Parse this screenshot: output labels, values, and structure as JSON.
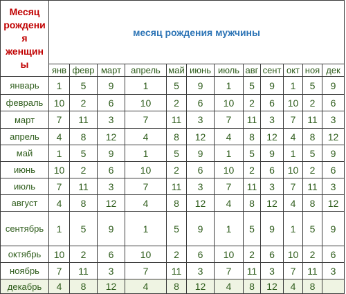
{
  "corner_label": [
    "Месяц",
    "рождени",
    "я",
    "женщин",
    "ы"
  ],
  "title": "месяц рождения мужчины",
  "male_months": [
    "янв",
    "февр",
    "март",
    "апрель",
    "май",
    "июнь",
    "июль",
    "авг",
    "сент",
    "окт",
    "ноя",
    "дек"
  ],
  "rows": [
    {
      "month": "январь",
      "values": [
        "1",
        "5",
        "9",
        "1",
        "5",
        "9",
        "1",
        "5",
        "9",
        "1",
        "5",
        "9"
      ]
    },
    {
      "month": "февраль",
      "values": [
        "10",
        "2",
        "6",
        "10",
        "2",
        "6",
        "10",
        "2",
        "6",
        "10",
        "2",
        "6"
      ]
    },
    {
      "month": "март",
      "values": [
        "7",
        "11",
        "3",
        "7",
        "11",
        "3",
        "7",
        "11",
        "3",
        "7",
        "11",
        "3"
      ]
    },
    {
      "month": "апрель",
      "values": [
        "4",
        "8",
        "12",
        "4",
        "8",
        "12",
        "4",
        "8",
        "12",
        "4",
        "8",
        "12"
      ]
    },
    {
      "month": "май",
      "values": [
        "1",
        "5",
        "9",
        "1",
        "5",
        "9",
        "1",
        "5",
        "9",
        "1",
        "5",
        "9"
      ]
    },
    {
      "month": "июнь",
      "values": [
        "10",
        "2",
        "6",
        "10",
        "2",
        "6",
        "10",
        "2",
        "6",
        "10",
        "2",
        "6"
      ]
    },
    {
      "month": "июль",
      "values": [
        "7",
        "11",
        "3",
        "7",
        "11",
        "3",
        "7",
        "11",
        "3",
        "7",
        "11",
        "3"
      ]
    },
    {
      "month": "август",
      "values": [
        "4",
        "8",
        "12",
        "4",
        "8",
        "12",
        "4",
        "8",
        "12",
        "4",
        "8",
        "12"
      ]
    },
    {
      "month": "сентябрь",
      "values": [
        "1",
        "5",
        "9",
        "1",
        "5",
        "9",
        "1",
        "5",
        "9",
        "1",
        "5",
        "9"
      ]
    },
    {
      "month": "октябрь",
      "values": [
        "10",
        "2",
        "6",
        "10",
        "2",
        "6",
        "10",
        "2",
        "6",
        "10",
        "2",
        "6"
      ]
    },
    {
      "month": "ноябрь",
      "values": [
        "7",
        "11",
        "3",
        "7",
        "11",
        "3",
        "7",
        "11",
        "3",
        "7",
        "11",
        "3"
      ]
    },
    {
      "month": "декабрь",
      "values": [
        "4",
        "8",
        "12",
        "4",
        "8",
        "12",
        "4",
        "8",
        "12",
        "4",
        "8",
        ""
      ]
    }
  ]
}
